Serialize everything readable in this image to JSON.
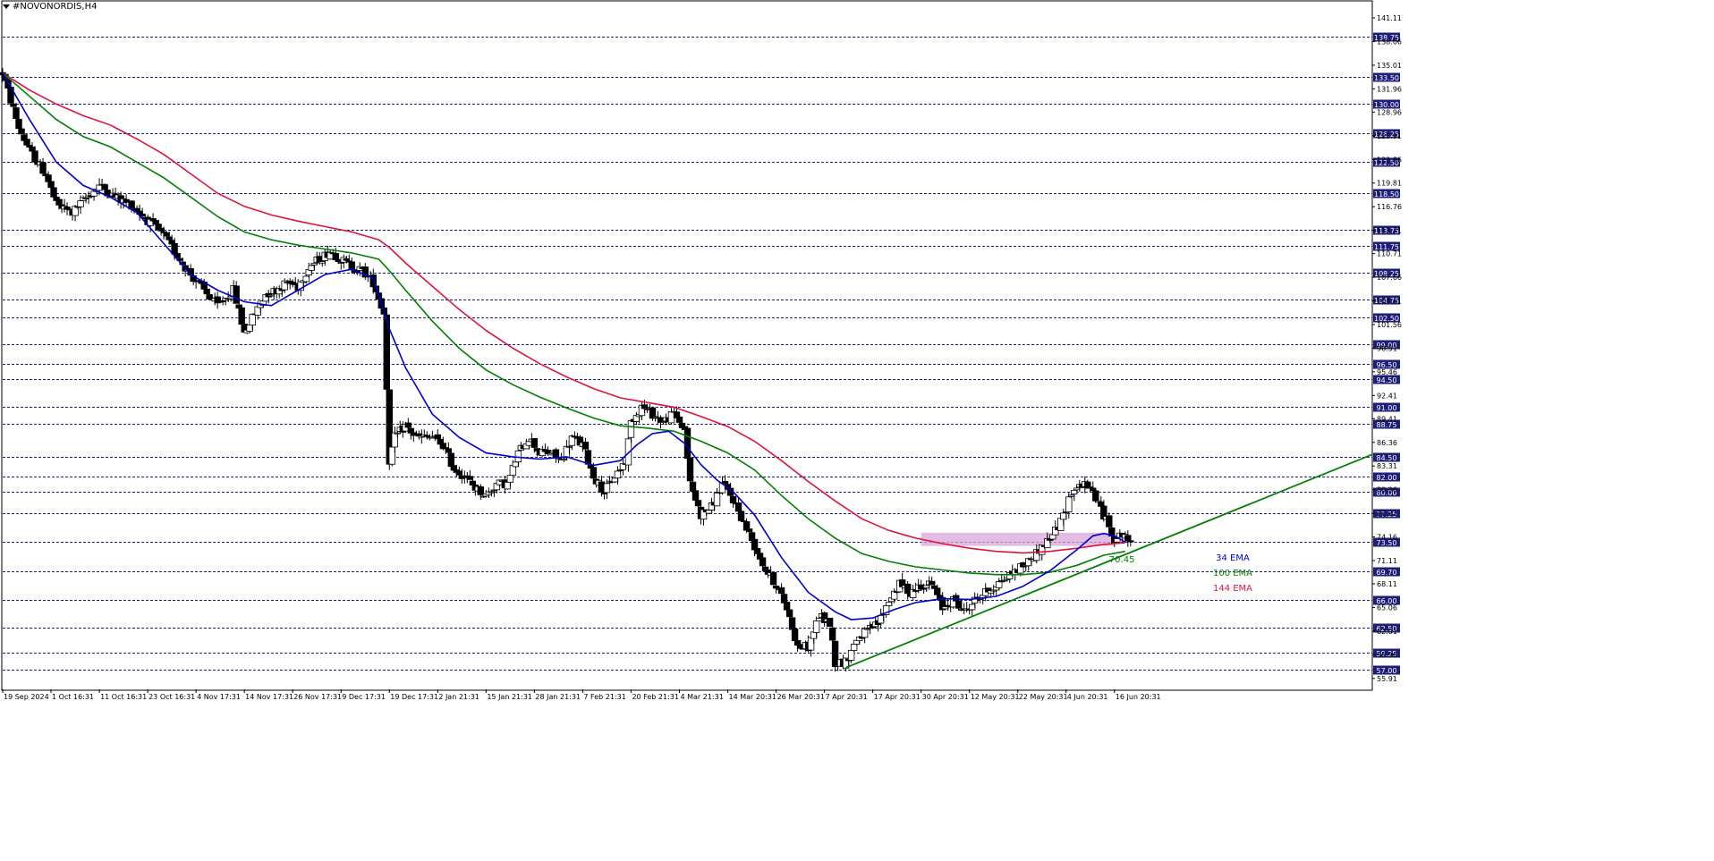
{
  "window": {
    "symbol_title": "#NOVONORDIS,H4"
  },
  "colors": {
    "ema34": "#0000cd",
    "ema100": "#008000",
    "ema144": "#dc143c",
    "trendline": "#008000",
    "zone": "#d8a6d8",
    "grid": "#1e1e78",
    "tag_bg": "#1e1e78"
  },
  "chart_data": {
    "type": "candlestick",
    "instrument": "#NOVONORDIS",
    "timeframe": "H4",
    "ylim": [
      54.5,
      142.5
    ],
    "x_range_index": [
      0,
      255
    ],
    "price_axis_ticks": [
      "141.11",
      "138.06",
      "135.01",
      "131.96",
      "128.96",
      "125.91",
      "122.86",
      "119.81",
      "116.76",
      "113.71",
      "110.71",
      "107.66",
      "104.61",
      "101.56",
      "98.51",
      "95.46",
      "92.41",
      "89.41",
      "86.36",
      "83.31",
      "80.26",
      "77.21",
      "74.16",
      "71.11",
      "68.11",
      "65.06",
      "62.01",
      "58.96",
      "55.91"
    ],
    "horizontal_levels": [
      "138.75",
      "133.50",
      "130.00",
      "126.25",
      "122.50",
      "118.50",
      "113.75",
      "111.75",
      "108.25",
      "104.75",
      "102.50",
      "99.00",
      "96.50",
      "94.50",
      "91.00",
      "88.75",
      "84.50",
      "82.00",
      "80.00",
      "77.25",
      "73.50",
      "69.70",
      "66.00",
      "62.50",
      "59.25",
      "57.00"
    ],
    "time_axis_labels": [
      {
        "label": "19 Sep 2024",
        "i": 0
      },
      {
        "label": "1 Oct 16:31",
        "i": 9
      },
      {
        "label": "11 Oct 16:31",
        "i": 18
      },
      {
        "label": "23 Oct 16:31",
        "i": 27
      },
      {
        "label": "4 Nov 17:31",
        "i": 36
      },
      {
        "label": "14 Nov 17:31",
        "i": 45
      },
      {
        "label": "26 Nov 17:31",
        "i": 54
      },
      {
        "label": "9 Dec 17:31",
        "i": 63
      },
      {
        "label": "19 Dec 17:31",
        "i": 72
      },
      {
        "label": "2 Jan 21:31",
        "i": 81
      },
      {
        "label": "15 Jan 21:31",
        "i": 90
      },
      {
        "label": "28 Jan 21:31",
        "i": 99
      },
      {
        "label": "7 Feb 21:31",
        "i": 108
      },
      {
        "label": "20 Feb 21:31",
        "i": 117
      },
      {
        "label": "4 Mar 21:31",
        "i": 126
      },
      {
        "label": "14 Mar 20:31",
        "i": 135
      },
      {
        "label": "26 Mar 20:31",
        "i": 144
      },
      {
        "label": "7 Apr 20:31",
        "i": 153
      },
      {
        "label": "17 Apr 20:31",
        "i": 162
      },
      {
        "label": "30 Apr 20:31",
        "i": 171
      },
      {
        "label": "12 May 20:31",
        "i": 180
      },
      {
        "label": "22 May 20:31",
        "i": 189
      },
      {
        "label": "4 Jun 20:31",
        "i": 198
      },
      {
        "label": "16 Jun 20:31",
        "i": 207
      }
    ],
    "price_path": [
      [
        0,
        134
      ],
      [
        3,
        127
      ],
      [
        5,
        124
      ],
      [
        8,
        121
      ],
      [
        10,
        117
      ],
      [
        13,
        116
      ],
      [
        15,
        117.5
      ],
      [
        18,
        119.5
      ],
      [
        21,
        118
      ],
      [
        24,
        117
      ],
      [
        27,
        115
      ],
      [
        30,
        113
      ],
      [
        33,
        110
      ],
      [
        35,
        108
      ],
      [
        38,
        105.5
      ],
      [
        40,
        104
      ],
      [
        43,
        106
      ],
      [
        45,
        100.5
      ],
      [
        47,
        103
      ],
      [
        49,
        105.5
      ],
      [
        51,
        106
      ],
      [
        53,
        107
      ],
      [
        55,
        106.5
      ],
      [
        57,
        109
      ],
      [
        59,
        110
      ],
      [
        61,
        111
      ],
      [
        63,
        110
      ],
      [
        65,
        109
      ],
      [
        67,
        108.5
      ],
      [
        69,
        107
      ],
      [
        71,
        103
      ],
      [
        72,
        84
      ],
      [
        73,
        87
      ],
      [
        75,
        88.5
      ],
      [
        77,
        87
      ],
      [
        80,
        87
      ],
      [
        82,
        86
      ],
      [
        84,
        83
      ],
      [
        86,
        82
      ],
      [
        88,
        80.5
      ],
      [
        90,
        79.5
      ],
      [
        92,
        81
      ],
      [
        94,
        81
      ],
      [
        96,
        85
      ],
      [
        98,
        87
      ],
      [
        100,
        85
      ],
      [
        102,
        85
      ],
      [
        104,
        84
      ],
      [
        106,
        87
      ],
      [
        108,
        86
      ],
      [
        110,
        82
      ],
      [
        112,
        80
      ],
      [
        114,
        82
      ],
      [
        116,
        84
      ],
      [
        117,
        89
      ],
      [
        119,
        91
      ],
      [
        121,
        90
      ],
      [
        123,
        89
      ],
      [
        125,
        90
      ],
      [
        127,
        88
      ],
      [
        128,
        81
      ],
      [
        130,
        77
      ],
      [
        132,
        78
      ],
      [
        134,
        81
      ],
      [
        136,
        79
      ],
      [
        138,
        76
      ],
      [
        140,
        73
      ],
      [
        142,
        70
      ],
      [
        144,
        68
      ],
      [
        146,
        65
      ],
      [
        148,
        60
      ],
      [
        150,
        60
      ],
      [
        152,
        64
      ],
      [
        154,
        63
      ],
      [
        155,
        58
      ],
      [
        157,
        58
      ],
      [
        159,
        61
      ],
      [
        161,
        62
      ],
      [
        163,
        63
      ],
      [
        165,
        66
      ],
      [
        167,
        68
      ],
      [
        169,
        67
      ],
      [
        171,
        68
      ],
      [
        173,
        68
      ],
      [
        175,
        65
      ],
      [
        177,
        66
      ],
      [
        179,
        64.5
      ],
      [
        181,
        66
      ],
      [
        183,
        67
      ],
      [
        185,
        68
      ],
      [
        187,
        69
      ],
      [
        189,
        70
      ],
      [
        191,
        71
      ],
      [
        193,
        72.5
      ],
      [
        195,
        74
      ],
      [
        197,
        76
      ],
      [
        199,
        80
      ],
      [
        201,
        81
      ],
      [
        203,
        80
      ],
      [
        205,
        77
      ],
      [
        207,
        74
      ],
      [
        209,
        74.5
      ],
      [
        210,
        73
      ]
    ],
    "ema34": [
      [
        0,
        134
      ],
      [
        5,
        128
      ],
      [
        10,
        122.5
      ],
      [
        15,
        119.5
      ],
      [
        20,
        118
      ],
      [
        25,
        116
      ],
      [
        30,
        112
      ],
      [
        35,
        108
      ],
      [
        40,
        106
      ],
      [
        45,
        104.5
      ],
      [
        50,
        104
      ],
      [
        55,
        106
      ],
      [
        60,
        108
      ],
      [
        65,
        108.7
      ],
      [
        69,
        107.5
      ],
      [
        72,
        101
      ],
      [
        75,
        96
      ],
      [
        80,
        90
      ],
      [
        85,
        87
      ],
      [
        90,
        85
      ],
      [
        95,
        84.5
      ],
      [
        100,
        84.2
      ],
      [
        105,
        84.5
      ],
      [
        110,
        83.4
      ],
      [
        115,
        84
      ],
      [
        118,
        86
      ],
      [
        121,
        87.5
      ],
      [
        124,
        87.8
      ],
      [
        127,
        86.2
      ],
      [
        130,
        83.5
      ],
      [
        133,
        81.5
      ],
      [
        136,
        80
      ],
      [
        140,
        77
      ],
      [
        145,
        71.5
      ],
      [
        150,
        67
      ],
      [
        155,
        64.5
      ],
      [
        158,
        63.5
      ],
      [
        162,
        63.7
      ],
      [
        166,
        64.8
      ],
      [
        170,
        65.7
      ],
      [
        175,
        66.2
      ],
      [
        180,
        66.1
      ],
      [
        185,
        66.5
      ],
      [
        190,
        67.8
      ],
      [
        195,
        69.8
      ],
      [
        200,
        72.5
      ],
      [
        203,
        74.3
      ],
      [
        205,
        74.6
      ],
      [
        207,
        74.3
      ],
      [
        209,
        73.5
      ]
    ],
    "ema100": [
      [
        0,
        134
      ],
      [
        5,
        131
      ],
      [
        10,
        128
      ],
      [
        15,
        125.8
      ],
      [
        20,
        124.5
      ],
      [
        25,
        122.5
      ],
      [
        30,
        120.5
      ],
      [
        35,
        118
      ],
      [
        40,
        115.5
      ],
      [
        45,
        113.5
      ],
      [
        50,
        112.5
      ],
      [
        55,
        111.8
      ],
      [
        60,
        111.3
      ],
      [
        65,
        110.8
      ],
      [
        70,
        110
      ],
      [
        72,
        108.5
      ],
      [
        75,
        106
      ],
      [
        80,
        102
      ],
      [
        85,
        98.5
      ],
      [
        90,
        95.7
      ],
      [
        95,
        93.8
      ],
      [
        100,
        92.2
      ],
      [
        105,
        90.8
      ],
      [
        110,
        89.5
      ],
      [
        115,
        88.5
      ],
      [
        120,
        88.2
      ],
      [
        125,
        87.8
      ],
      [
        130,
        86.5
      ],
      [
        135,
        85
      ],
      [
        140,
        82.8
      ],
      [
        145,
        79.5
      ],
      [
        150,
        76.5
      ],
      [
        155,
        74
      ],
      [
        160,
        72
      ],
      [
        165,
        71
      ],
      [
        170,
        70.3
      ],
      [
        175,
        69.9
      ],
      [
        180,
        69.5
      ],
      [
        185,
        69.3
      ],
      [
        190,
        69.3
      ],
      [
        195,
        69.6
      ],
      [
        200,
        70.5
      ],
      [
        205,
        71.8
      ],
      [
        209,
        72.3
      ]
    ],
    "ema144": [
      [
        0,
        134
      ],
      [
        5,
        131.8
      ],
      [
        10,
        130
      ],
      [
        15,
        128.5
      ],
      [
        20,
        127.3
      ],
      [
        25,
        125.5
      ],
      [
        30,
        123.5
      ],
      [
        35,
        121
      ],
      [
        40,
        118.5
      ],
      [
        45,
        116.8
      ],
      [
        50,
        115.7
      ],
      [
        55,
        114.9
      ],
      [
        60,
        114.2
      ],
      [
        65,
        113.5
      ],
      [
        70,
        112.5
      ],
      [
        72,
        111.5
      ],
      [
        75,
        109.5
      ],
      [
        80,
        106.5
      ],
      [
        85,
        103.5
      ],
      [
        90,
        100.8
      ],
      [
        95,
        98.5
      ],
      [
        100,
        96.5
      ],
      [
        105,
        94.8
      ],
      [
        110,
        93.3
      ],
      [
        115,
        92.1
      ],
      [
        120,
        91.5
      ],
      [
        125,
        90.9
      ],
      [
        130,
        89.7
      ],
      [
        135,
        88.4
      ],
      [
        140,
        86.5
      ],
      [
        145,
        84
      ],
      [
        150,
        81.3
      ],
      [
        155,
        78.8
      ],
      [
        160,
        76.5
      ],
      [
        165,
        75
      ],
      [
        170,
        74
      ],
      [
        175,
        73.3
      ],
      [
        180,
        72.7
      ],
      [
        185,
        72.3
      ],
      [
        190,
        72.1
      ],
      [
        195,
        72.3
      ],
      [
        200,
        72.7
      ],
      [
        205,
        73.2
      ],
      [
        209,
        73.4
      ]
    ],
    "trendline": {
      "from": [
        157,
        57.3
      ],
      "to": [
        255,
        84.8
      ],
      "label": "70.45",
      "label_i": 206,
      "label_price": 70.9
    },
    "support_zone": {
      "i_from": 171,
      "i_to": 207,
      "price_low": 73.0,
      "price_high": 74.7
    },
    "legend": [
      {
        "label": "34 EMA",
        "color_key": "ema34"
      },
      {
        "label": "100 EMA",
        "color_key": "ema100"
      },
      {
        "label": "144 EMA",
        "color_key": "ema144"
      }
    ]
  }
}
